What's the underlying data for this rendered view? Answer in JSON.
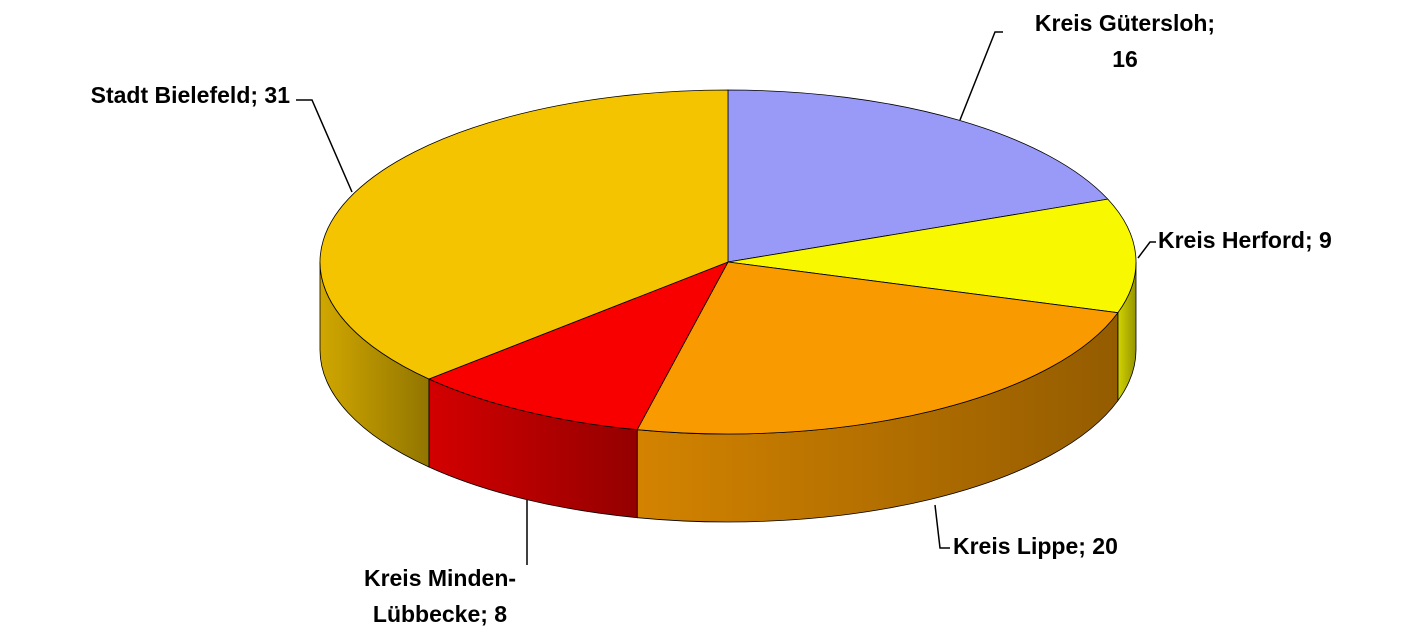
{
  "chart_data": {
    "type": "pie",
    "categories": [
      "Kreis Gütersloh",
      "Kreis Herford",
      "Kreis Lippe",
      "Kreis Minden-Lübbecke",
      "Stadt Bielefeld"
    ],
    "values": [
      16,
      9,
      20,
      8,
      31
    ],
    "value_labels": [
      "Kreis Gütersloh; 16",
      "Kreis Herford; 9",
      "Kreis Lippe; 20",
      "Kreis Minden-Lübbecke; 8",
      "Stadt Bielefeld; 31"
    ],
    "colors": [
      "#9999f8",
      "#f8f800",
      "#f89a00",
      "#f80000",
      "#f5c400"
    ]
  }
}
